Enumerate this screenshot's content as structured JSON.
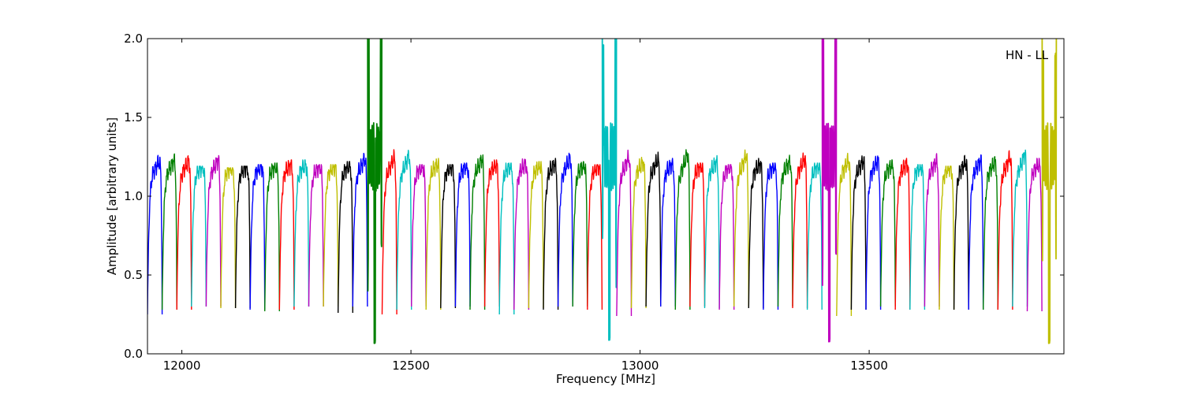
{
  "chart_data": {
    "type": "line",
    "title": "",
    "xlabel": "Frequency [MHz]",
    "ylabel": "Amplitude [arbitrary units]",
    "annotation": "HN - LL",
    "xlim": [
      11925,
      13925
    ],
    "ylim": [
      0.0,
      2.0
    ],
    "x_ticks": [
      12000,
      12500,
      13000,
      13500
    ],
    "y_ticks": [
      0.0,
      0.5,
      1.0,
      1.5,
      2.0
    ],
    "x_tick_labels": [
      "12000",
      "12500",
      "13000",
      "13500"
    ],
    "y_tick_labels": [
      "0.0",
      "0.5",
      "1.0",
      "1.5",
      "2.0"
    ],
    "grid": false,
    "legend": "none",
    "channel_width_mhz": 32,
    "color_cycle": [
      "#0000ff",
      "#008000",
      "#ff0000",
      "#00bfbf",
      "#bf00bf",
      "#bfbf00",
      "#000000"
    ],
    "channels": [
      {
        "start": 11925,
        "peak": 1.28,
        "min": 0.25
      },
      {
        "start": 11957,
        "peak": 1.29,
        "min": 0.28
      },
      {
        "start": 11989,
        "peak": 1.28,
        "min": 0.28
      },
      {
        "start": 12021,
        "peak": 1.19,
        "min": 0.3
      },
      {
        "start": 12053,
        "peak": 1.3,
        "min": 0.3
      },
      {
        "start": 12085,
        "peak": 1.18,
        "min": 0.29
      },
      {
        "start": 12117,
        "peak": 1.19,
        "min": 0.29
      },
      {
        "start": 12149,
        "peak": 1.2,
        "min": 0.28
      },
      {
        "start": 12181,
        "peak": 1.21,
        "min": 0.27
      },
      {
        "start": 12213,
        "peak": 1.23,
        "min": 0.28
      },
      {
        "start": 12245,
        "peak": 1.23,
        "min": 0.3
      },
      {
        "start": 12277,
        "peak": 1.2,
        "min": 0.3
      },
      {
        "start": 12309,
        "peak": 1.2,
        "min": 0.3
      },
      {
        "start": 12341,
        "peak": 1.22,
        "min": 0.26
      },
      {
        "start": 12373,
        "peak": 1.32,
        "min": 0.3
      },
      {
        "start": 12405,
        "peak": 2.0,
        "min": 0.04,
        "rfi": true
      },
      {
        "start": 12437,
        "peak": 1.33,
        "min": 0.25
      },
      {
        "start": 12469,
        "peak": 1.36,
        "min": 0.28
      },
      {
        "start": 12501,
        "peak": 1.2,
        "min": 0.3
      },
      {
        "start": 12533,
        "peak": 1.24,
        "min": 0.28
      },
      {
        "start": 12565,
        "peak": 1.2,
        "min": 0.29
      },
      {
        "start": 12597,
        "peak": 1.21,
        "min": 0.3
      },
      {
        "start": 12629,
        "peak": 1.31,
        "min": 0.28
      },
      {
        "start": 12661,
        "peak": 1.23,
        "min": 0.3
      },
      {
        "start": 12693,
        "peak": 1.21,
        "min": 0.25
      },
      {
        "start": 12725,
        "peak": 1.24,
        "min": 0.28
      },
      {
        "start": 12757,
        "peak": 1.22,
        "min": 0.29
      },
      {
        "start": 12789,
        "peak": 1.24,
        "min": 0.28
      },
      {
        "start": 12821,
        "peak": 1.32,
        "min": 0.3
      },
      {
        "start": 12853,
        "peak": 1.22,
        "min": 0.3
      },
      {
        "start": 12885,
        "peak": 1.2,
        "min": 0.28
      },
      {
        "start": 12917,
        "peak": 2.0,
        "min": 0.06,
        "rfi": true
      },
      {
        "start": 12949,
        "peak": 1.33,
        "min": 0.24
      },
      {
        "start": 12981,
        "peak": 1.26,
        "min": 0.29
      },
      {
        "start": 13013,
        "peak": 1.3,
        "min": 0.3
      },
      {
        "start": 13045,
        "peak": 1.24,
        "min": 0.3
      },
      {
        "start": 13077,
        "peak": 1.38,
        "min": 0.28
      },
      {
        "start": 13109,
        "peak": 1.21,
        "min": 0.3
      },
      {
        "start": 13141,
        "peak": 1.27,
        "min": 0.29
      },
      {
        "start": 13173,
        "peak": 1.2,
        "min": 0.28
      },
      {
        "start": 13205,
        "peak": 1.36,
        "min": 0.3
      },
      {
        "start": 13237,
        "peak": 1.24,
        "min": 0.29
      },
      {
        "start": 13269,
        "peak": 1.21,
        "min": 0.28
      },
      {
        "start": 13301,
        "peak": 1.27,
        "min": 0.3
      },
      {
        "start": 13333,
        "peak": 1.32,
        "min": 0.29
      },
      {
        "start": 13365,
        "peak": 1.21,
        "min": 0.28
      },
      {
        "start": 13397,
        "peak": 2.0,
        "min": 0.05,
        "rfi": true
      },
      {
        "start": 13429,
        "peak": 1.29,
        "min": 0.24
      },
      {
        "start": 13461,
        "peak": 1.29,
        "min": 0.28
      },
      {
        "start": 13493,
        "peak": 1.29,
        "min": 0.28
      },
      {
        "start": 13525,
        "peak": 1.23,
        "min": 0.3
      },
      {
        "start": 13557,
        "peak": 1.25,
        "min": 0.28
      },
      {
        "start": 13589,
        "peak": 1.2,
        "min": 0.28
      },
      {
        "start": 13621,
        "peak": 1.28,
        "min": 0.3
      },
      {
        "start": 13653,
        "peak": 1.19,
        "min": 0.28
      },
      {
        "start": 13685,
        "peak": 1.27,
        "min": 0.28
      },
      {
        "start": 13717,
        "peak": 1.29,
        "min": 0.28
      },
      {
        "start": 13749,
        "peak": 1.27,
        "min": 0.28
      },
      {
        "start": 13781,
        "peak": 1.34,
        "min": 0.28
      },
      {
        "start": 13813,
        "peak": 1.38,
        "min": 0.3
      },
      {
        "start": 13845,
        "peak": 1.24,
        "min": 0.27
      },
      {
        "start": 13877,
        "peak": 2.0,
        "min": 0.04,
        "rfi": true
      }
    ]
  }
}
